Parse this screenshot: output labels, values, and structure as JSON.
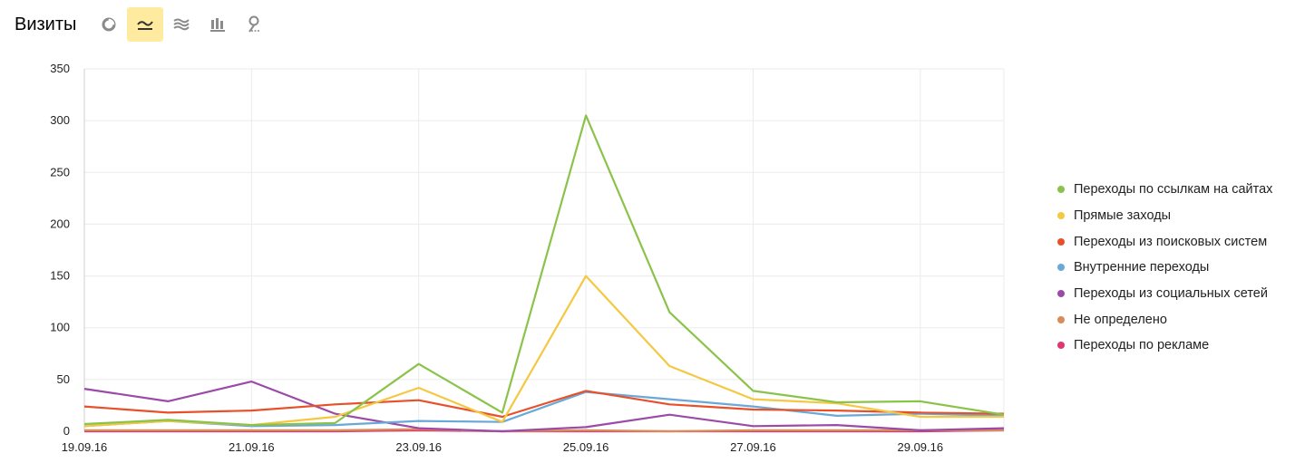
{
  "header": {
    "title": "Визиты",
    "views": [
      {
        "icon": "pie-chart-icon",
        "active": false
      },
      {
        "icon": "line-chart-icon",
        "active": true
      },
      {
        "icon": "area-chart-icon",
        "active": false
      },
      {
        "icon": "bar-chart-icon",
        "active": false
      },
      {
        "icon": "map-pin-icon",
        "active": false
      }
    ]
  },
  "chart_data": {
    "type": "line",
    "x": [
      "19.09.16",
      "20.09.16",
      "21.09.16",
      "22.09.16",
      "23.09.16",
      "24.09.16",
      "25.09.16",
      "26.09.16",
      "27.09.16",
      "28.09.16",
      "29.09.16",
      "30.09.16"
    ],
    "xticks": [
      "19.09.16",
      "21.09.16",
      "23.09.16",
      "25.09.16",
      "27.09.16",
      "29.09.16"
    ],
    "highlight_tick": "25.09.16",
    "highlight_color": "#b53a2a",
    "yticks": [
      0,
      50,
      100,
      150,
      200,
      250,
      300,
      350
    ],
    "ylim": [
      0,
      350
    ],
    "grid": true,
    "legend_position": "right",
    "series": [
      {
        "name": "Переходы по ссылкам на сайтах",
        "color": "#8bc34a",
        "values": [
          7,
          11,
          6,
          8,
          65,
          18,
          305,
          115,
          39,
          28,
          29,
          16
        ]
      },
      {
        "name": "Прямые заходы",
        "color": "#f4c842",
        "values": [
          5,
          10,
          6,
          14,
          42,
          9,
          150,
          63,
          31,
          27,
          14,
          14
        ]
      },
      {
        "name": "Переходы из поисковых систем",
        "color": "#e8502a",
        "values": [
          24,
          18,
          20,
          26,
          30,
          14,
          39,
          26,
          21,
          20,
          18,
          17
        ]
      },
      {
        "name": "Внутренние переходы",
        "color": "#6aa8d8",
        "values": [
          5,
          10,
          5,
          6,
          10,
          9,
          38,
          31,
          24,
          15,
          17,
          15
        ]
      },
      {
        "name": "Переходы из социальных сетей",
        "color": "#9b4aa8",
        "values": [
          41,
          29,
          48,
          17,
          3,
          0,
          4,
          16,
          5,
          6,
          1,
          3
        ]
      },
      {
        "name": "Не определено",
        "color": "#d98b5a",
        "values": [
          1,
          1,
          1,
          1,
          2,
          0,
          1,
          0,
          1,
          1,
          1,
          1
        ]
      },
      {
        "name": "Переходы по рекламе",
        "color": "#e0356e",
        "values": [
          0,
          0,
          0,
          0,
          1,
          0,
          0,
          0,
          0,
          0,
          0,
          1
        ]
      }
    ]
  }
}
